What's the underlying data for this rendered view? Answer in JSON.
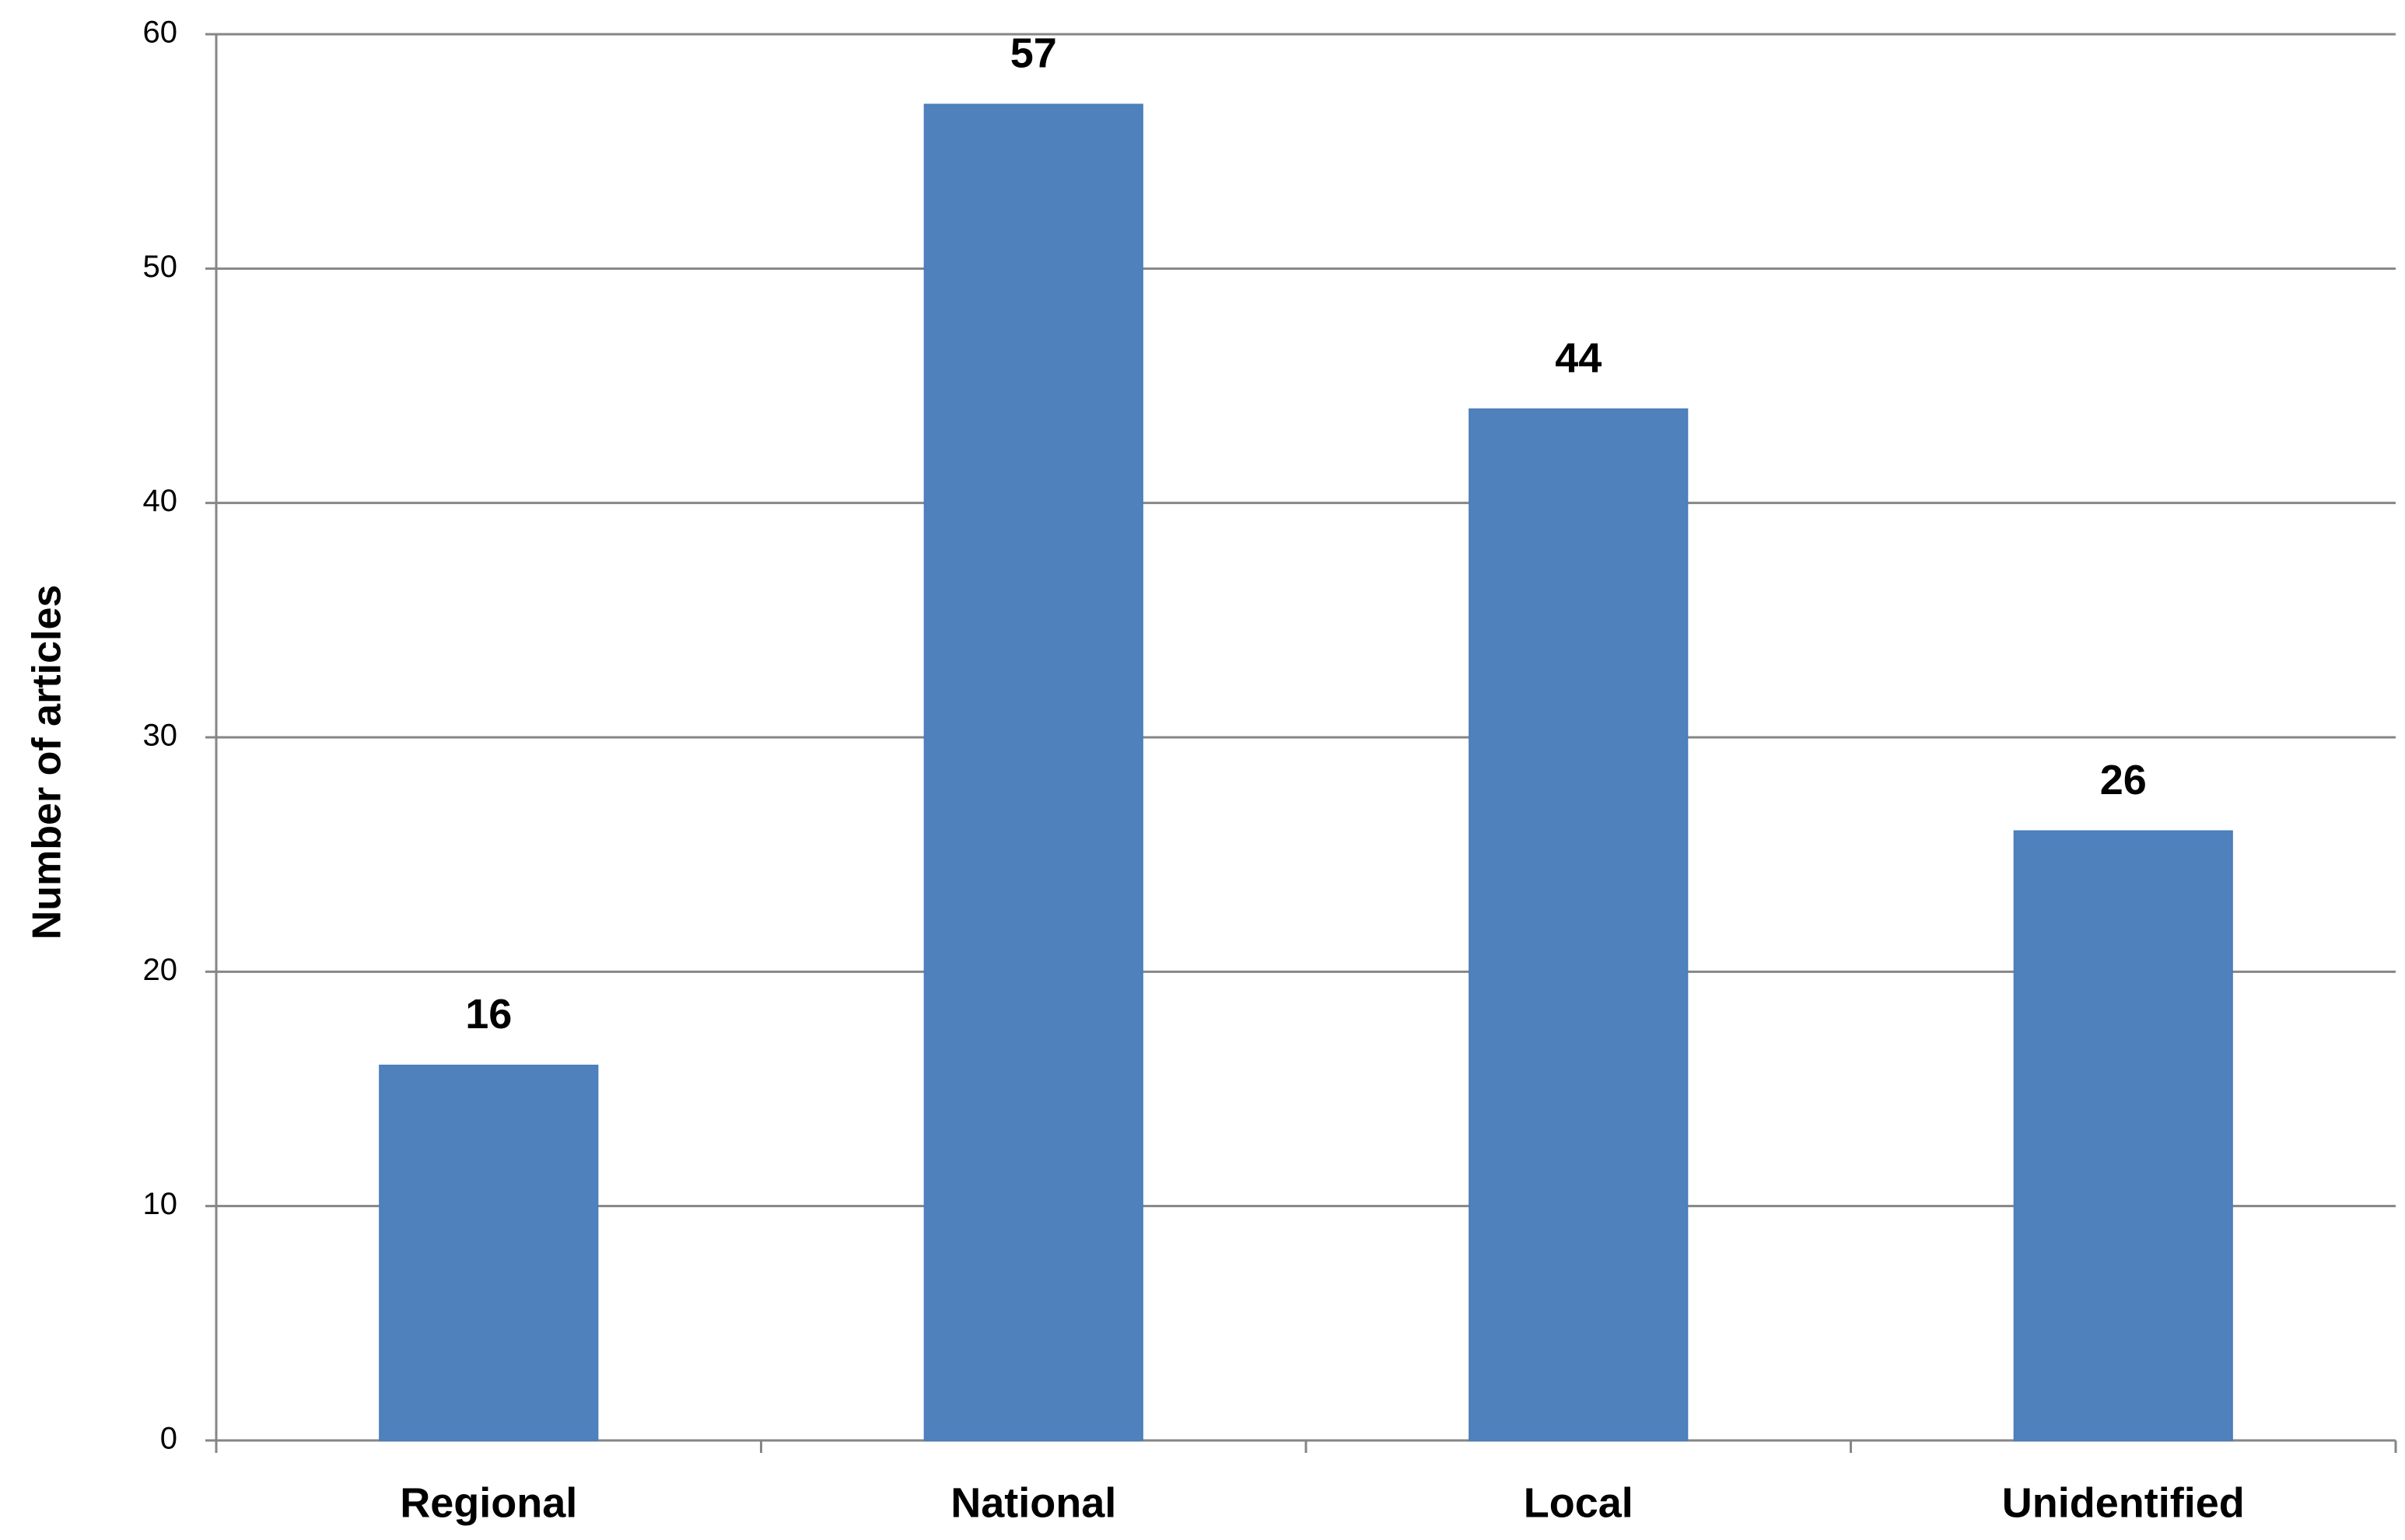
{
  "chart_data": {
    "type": "bar",
    "y_label": "Number of articles",
    "categories": [
      "Regional",
      "National",
      "Local",
      "Unidentified"
    ],
    "values": [
      16,
      57,
      44,
      26
    ],
    "color": "#4f81bd",
    "ylim": [
      0,
      60
    ],
    "yticks": [
      0,
      10,
      20,
      30,
      40,
      50,
      60
    ],
    "grid": true
  }
}
